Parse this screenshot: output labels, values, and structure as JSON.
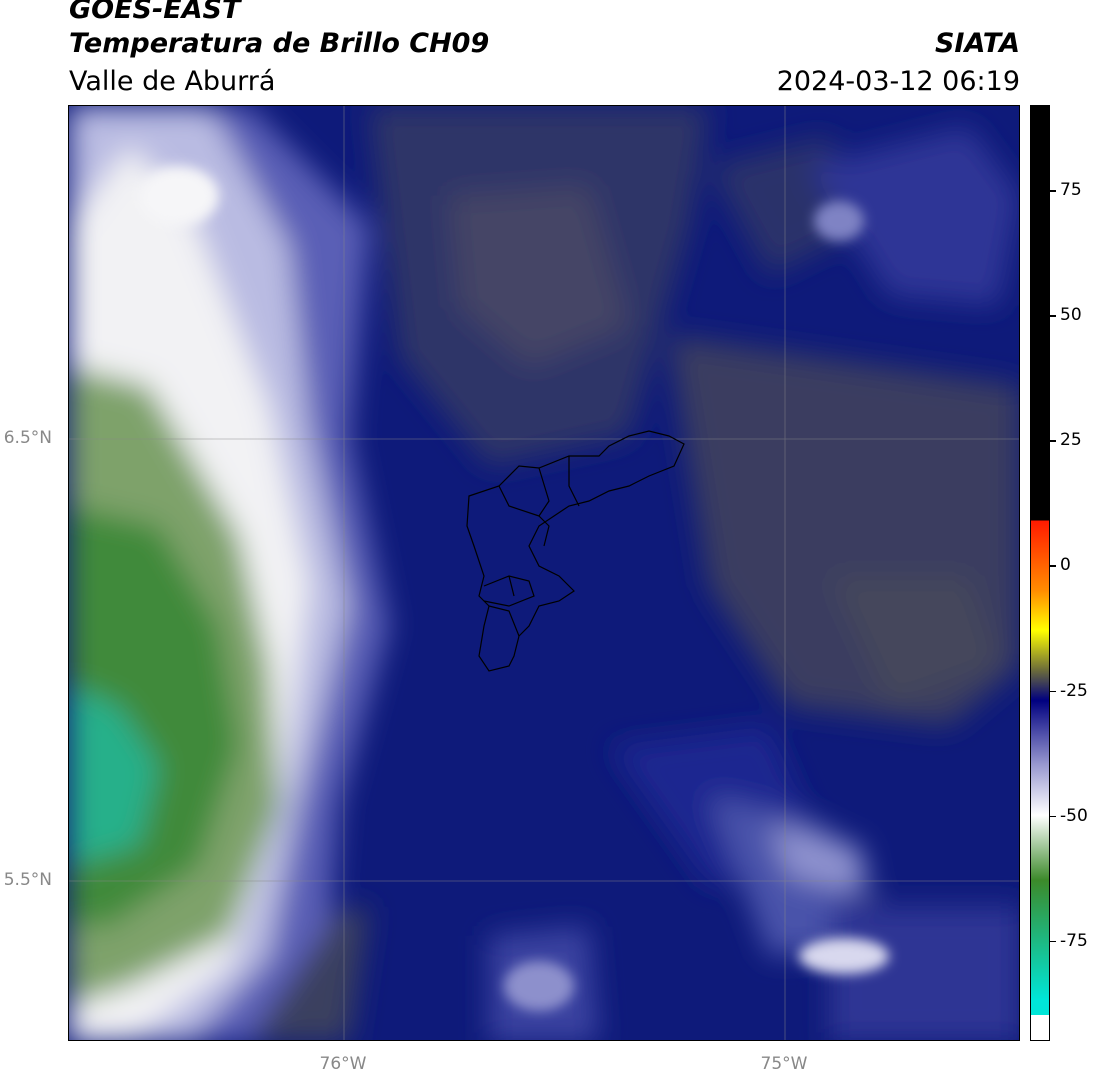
{
  "header": {
    "satellite": "GOES-EAST",
    "product": "Temperatura de Brillo CH09",
    "region": "Valle de Aburrá",
    "institution": "SIATA",
    "datetime": "2024-03-12 06:19"
  },
  "map": {
    "lat_labels": [
      "6.5°N",
      "5.5°N"
    ],
    "lon_labels": [
      "76°W",
      "75°W"
    ],
    "graticule_lat": [
      6.5,
      5.5
    ],
    "graticule_lon": [
      -76.0,
      -75.0
    ]
  },
  "colorbar": {
    "ticks": [
      "75",
      "50",
      "25",
      "0",
      "-25",
      "-50",
      "-75"
    ],
    "tick_values": [
      75,
      50,
      25,
      0,
      -25,
      -50,
      -75
    ],
    "range": [
      -95,
      92
    ],
    "colors": {
      "warm_black": "#000000",
      "red": "#ff1a00",
      "orange": "#ff8c00",
      "yellow": "#ffff00",
      "olive": "#6b6b3a",
      "navy": "#000080",
      "lavender": "#9a9ad0",
      "white": "#ffffff",
      "green": "#3c8a2a",
      "cyan": "#00e6d8"
    }
  }
}
